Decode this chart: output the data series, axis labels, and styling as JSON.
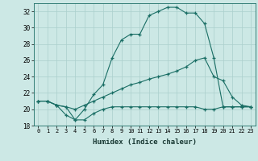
{
  "xlabel": "Humidex (Indice chaleur)",
  "ylabel": "",
  "background_color": "#cce8e5",
  "grid_color": "#aacfcc",
  "line_color": "#1a6e65",
  "xlim": [
    -0.5,
    23.5
  ],
  "ylim": [
    18,
    33
  ],
  "yticks": [
    18,
    20,
    22,
    24,
    26,
    28,
    30,
    32
  ],
  "xticks": [
    0,
    1,
    2,
    3,
    4,
    5,
    6,
    7,
    8,
    9,
    10,
    11,
    12,
    13,
    14,
    15,
    16,
    17,
    18,
    19,
    20,
    21,
    22,
    23
  ],
  "series": [
    {
      "x": [
        0,
        1,
        2,
        3,
        4,
        5,
        6,
        7,
        8,
        9,
        10,
        11,
        12,
        13,
        14,
        15,
        16,
        17,
        18,
        19,
        20,
        21,
        22,
        23
      ],
      "y": [
        21.0,
        21.0,
        20.5,
        19.3,
        18.7,
        20.0,
        21.8,
        23.0,
        26.3,
        28.5,
        29.2,
        29.2,
        31.5,
        32.0,
        32.5,
        32.5,
        31.8,
        31.8,
        30.5,
        26.3,
        20.3,
        20.3,
        20.3,
        20.3
      ]
    },
    {
      "x": [
        0,
        1,
        2,
        3,
        4,
        5,
        6,
        7,
        8,
        9,
        10,
        11,
        12,
        13,
        14,
        15,
        16,
        17,
        18,
        19,
        20,
        21,
        22,
        23
      ],
      "y": [
        21.0,
        21.0,
        20.5,
        20.3,
        20.0,
        20.5,
        21.0,
        21.5,
        22.0,
        22.5,
        23.0,
        23.3,
        23.7,
        24.0,
        24.3,
        24.7,
        25.2,
        26.0,
        26.3,
        24.0,
        23.5,
        21.5,
        20.5,
        20.3
      ]
    },
    {
      "x": [
        0,
        1,
        2,
        3,
        4,
        5,
        6,
        7,
        8,
        9,
        10,
        11,
        12,
        13,
        14,
        15,
        16,
        17,
        18,
        19,
        20,
        21,
        22,
        23
      ],
      "y": [
        21.0,
        21.0,
        20.5,
        20.3,
        18.7,
        18.7,
        19.5,
        20.0,
        20.3,
        20.3,
        20.3,
        20.3,
        20.3,
        20.3,
        20.3,
        20.3,
        20.3,
        20.3,
        20.0,
        20.0,
        20.3,
        20.3,
        20.3,
        20.3
      ]
    }
  ]
}
